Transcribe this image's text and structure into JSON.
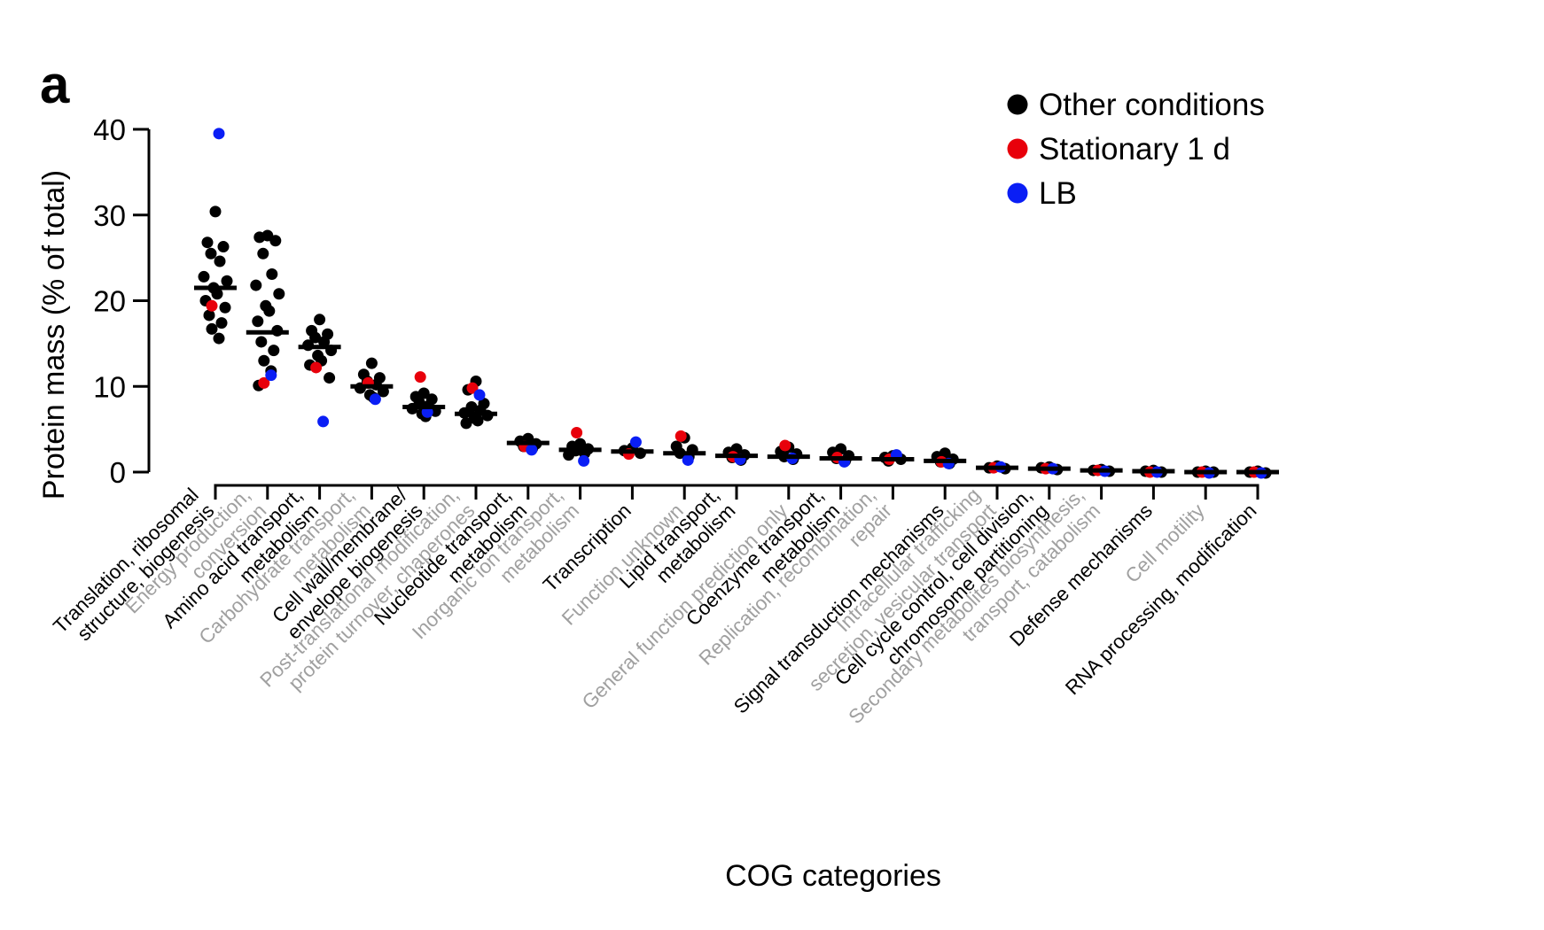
{
  "panel_label": "a",
  "chart_data": {
    "type": "scatter",
    "title": "",
    "xlabel": "COG categories",
    "ylabel": "Protein mass (% of total)",
    "ylim": [
      0,
      40
    ],
    "yticks": [
      "0",
      "10",
      "20",
      "30",
      "40"
    ],
    "grid": false,
    "legend_position": "top-right",
    "colors": {
      "other": "#000000",
      "stationary": "#e8000b",
      "lb": "#0a1ef5",
      "gray_label": "#a0a0a0",
      "black_label": "#000000"
    },
    "legend": [
      {
        "key": "other",
        "label": "Other conditions"
      },
      {
        "key": "stationary",
        "label": "Stationary 1 d"
      },
      {
        "key": "lb",
        "label": "LB"
      }
    ],
    "categories": [
      {
        "lines": [
          "Translation, ribosomal",
          "structure, biogenesis"
        ],
        "shade": "black",
        "median": 21.5,
        "other": [
          30.4,
          26.8,
          26.3,
          25.5,
          24.6,
          22.8,
          22.3,
          21.5,
          20.8,
          20.0,
          19.2,
          18.3,
          17.4,
          16.7,
          15.6
        ],
        "stationary": 19.4,
        "lb": 39.5
      },
      {
        "lines": [
          "Energy production,",
          "conversion"
        ],
        "shade": "gray",
        "median": 16.3,
        "other": [
          27.6,
          27.4,
          27.0,
          25.5,
          23.1,
          21.8,
          20.8,
          19.4,
          18.8,
          17.6,
          16.5,
          15.2,
          14.2,
          13.0,
          11.8,
          10.1
        ],
        "stationary": 10.4,
        "lb": 11.3
      },
      {
        "lines": [
          "Amino acid transport,",
          "metabolism"
        ],
        "shade": "black",
        "median": 14.6,
        "other": [
          17.8,
          16.5,
          16.1,
          15.7,
          15.2,
          14.8,
          14.2,
          13.6,
          13.0,
          12.5,
          11.0
        ],
        "stationary": 12.2,
        "lb": 5.9
      },
      {
        "lines": [
          "Carbohydrate transport,",
          "metabolism"
        ],
        "shade": "gray",
        "median": 10.0,
        "other": [
          12.7,
          11.4,
          11.0,
          10.6,
          10.2,
          9.8,
          9.4,
          9.0,
          8.7
        ],
        "stationary": 10.4,
        "lb": 8.5
      },
      {
        "lines": [
          "Cell wall/membrane/",
          "envelope biogenesis"
        ],
        "shade": "black",
        "median": 7.6,
        "other": [
          9.2,
          8.8,
          8.5,
          8.1,
          7.7,
          7.4,
          7.1,
          6.8,
          6.5
        ],
        "stationary": 11.1,
        "lb": 7.0
      },
      {
        "lines": [
          "Post-translational modification,",
          "protein turnover, chaperones"
        ],
        "shade": "gray",
        "median": 6.8,
        "other": [
          10.6,
          9.6,
          8.0,
          7.6,
          7.2,
          6.9,
          6.6,
          6.3,
          6.0,
          5.7
        ],
        "stationary": 9.8,
        "lb": 9.0
      },
      {
        "lines": [
          "Nucleotide transport,",
          "metabolism"
        ],
        "shade": "black",
        "median": 3.4,
        "other": [
          3.9,
          3.6,
          3.3,
          3.0,
          2.8
        ],
        "stationary": 3.0,
        "lb": 2.6
      },
      {
        "lines": [
          "Inorganic ion transport,",
          "metabolism"
        ],
        "shade": "gray",
        "median": 2.6,
        "other": [
          3.3,
          3.0,
          2.7,
          2.5,
          2.2,
          2.0
        ],
        "stationary": 4.6,
        "lb": 1.3
      },
      {
        "lines": [
          "Transcription"
        ],
        "shade": "black",
        "median": 2.4,
        "other": [
          2.8,
          2.5,
          2.2
        ],
        "stationary": 2.1,
        "lb": 3.5
      },
      {
        "lines": [
          "Function unknown"
        ],
        "shade": "gray",
        "median": 2.2,
        "other": [
          4.0,
          3.0,
          2.6,
          2.2,
          1.8
        ],
        "stationary": 4.2,
        "lb": 1.4
      },
      {
        "lines": [
          "Lipid transport,",
          "metabolism"
        ],
        "shade": "black",
        "median": 1.9,
        "other": [
          2.7,
          2.3,
          2.0,
          1.7,
          1.4
        ],
        "stationary": 1.8,
        "lb": 1.5
      },
      {
        "lines": [
          "General function prediction only"
        ],
        "shade": "gray",
        "median": 1.8,
        "other": [
          2.9,
          2.4,
          2.1,
          1.8,
          1.5
        ],
        "stationary": 3.1,
        "lb": 1.6
      },
      {
        "lines": [
          "Coenzyme transport,",
          "metabolism"
        ],
        "shade": "black",
        "median": 1.6,
        "other": [
          2.7,
          2.3,
          1.9,
          1.6,
          1.3
        ],
        "stationary": 1.7,
        "lb": 1.2
      },
      {
        "lines": [
          "Replication, recombination,",
          "repair"
        ],
        "shade": "gray",
        "median": 1.5,
        "other": [
          1.9,
          1.7,
          1.5,
          1.3
        ],
        "stationary": 1.5,
        "lb": 2.0
      },
      {
        "lines": [
          "Signal transduction mechanisms"
        ],
        "shade": "black",
        "median": 1.3,
        "other": [
          2.2,
          1.8,
          1.5,
          1.2,
          1.0
        ],
        "stationary": 1.2,
        "lb": 1.0
      },
      {
        "lines": [
          "Intracellular trafficking",
          "secretion, vesicular transport"
        ],
        "shade": "gray",
        "median": 0.5,
        "other": [
          0.7,
          0.5,
          0.4
        ],
        "stationary": 0.5,
        "lb": 0.6
      },
      {
        "lines": [
          "Cell cycle control, cell division,",
          "chromosome partitioning"
        ],
        "shade": "black",
        "median": 0.4,
        "other": [
          0.6,
          0.5,
          0.3
        ],
        "stationary": 0.4,
        "lb": 0.4
      },
      {
        "lines": [
          "Secondary metabolites biosynthesis,",
          "transport, catabolism"
        ],
        "shade": "gray",
        "median": 0.2,
        "other": [
          0.3,
          0.2,
          0.1
        ],
        "stationary": 0.2,
        "lb": 0.1
      },
      {
        "lines": [
          "Defense mechanisms"
        ],
        "shade": "black",
        "median": 0.1,
        "other": [
          0.2,
          0.1,
          0.0
        ],
        "stationary": 0.0,
        "lb": 0.0
      },
      {
        "lines": [
          "Cell motility"
        ],
        "shade": "gray",
        "median": 0.0,
        "other": [
          0.1,
          0.0,
          0.0
        ],
        "stationary": 0.0,
        "lb": -0.1
      },
      {
        "lines": [
          "RNA processing, modification"
        ],
        "shade": "black",
        "median": 0.0,
        "other": [
          0.1,
          0.0,
          -0.1
        ],
        "stationary": 0.0,
        "lb": -0.1
      }
    ]
  }
}
